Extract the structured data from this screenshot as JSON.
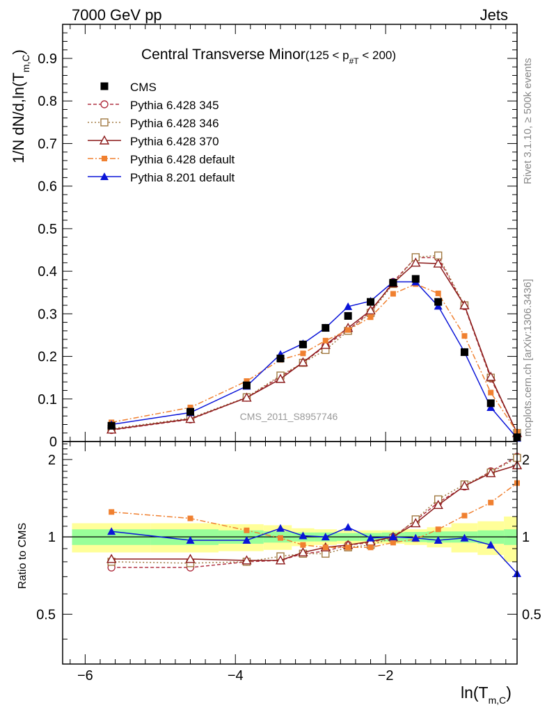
{
  "header": {
    "energy_label": "7000 GeV pp",
    "process_label": "Jets",
    "plot_title": "Central Transverse Minor",
    "plot_title_cut_pre": "(125 < p",
    "plot_title_cut_sub": "#T",
    "plot_title_cut_post": " < 200)",
    "analysis_id": "CMS_2011_S8957746",
    "side_label_top": "Rivet 3.1.10, ≥ 500k events",
    "side_label_bottom": "mcplots.cern.ch [arXiv:1306.3436]"
  },
  "axes": {
    "ylabel_main_pre": "1/N",
    "ylabel_main_mid": " dN/d,ln(T",
    "ylabel_main_sub": "m,C",
    "ylabel_main_post": ")",
    "ylabel_ratio": "Ratio to CMS",
    "xlabel_pre": "ln(T",
    "xlabel_sub": "m,C",
    "xlabel_post": ")"
  },
  "chart_data": {
    "type": "line",
    "x_range": [
      -6.3,
      -0.25
    ],
    "y_range_main": [
      0,
      0.98
    ],
    "y_range_ratio": [
      0.32,
      2.35
    ],
    "ratio_scale": "log",
    "legend_position": "top-left",
    "x_ticks": [
      -6,
      -4,
      -2
    ],
    "x_tick_labels": [
      "−6",
      "−4",
      "−2"
    ],
    "y_ticks_main": [
      0,
      0.1,
      0.2,
      0.3,
      0.4,
      0.5,
      0.6,
      0.7,
      0.8,
      0.9
    ],
    "y_tick_labels_main": [
      "0",
      "0.1",
      "0.2",
      "0.3",
      "0.4",
      "0.5",
      "0.6",
      "0.7",
      "0.8",
      "0.9"
    ],
    "y_ticks_ratio": [
      0.5,
      1,
      2
    ],
    "y_tick_labels_ratio": [
      "0.5",
      "1",
      "2"
    ],
    "x": [
      -5.65,
      -4.6,
      -3.85,
      -3.4,
      -3.1,
      -2.8,
      -2.5,
      -2.2,
      -1.9,
      -1.6,
      -1.3,
      -0.95,
      -0.6,
      -0.25
    ],
    "reference": {
      "name": "CMS",
      "color": "#000000",
      "x": [
        -5.65,
        -4.6,
        -3.85,
        -3.4,
        -3.1,
        -2.8,
        -2.5,
        -2.2,
        -1.9,
        -1.6,
        -1.3,
        -0.95,
        -0.6,
        -0.25
      ],
      "values": [
        0.037,
        0.07,
        0.132,
        0.195,
        0.228,
        0.267,
        0.295,
        0.328,
        0.373,
        0.382,
        0.328,
        0.21,
        0.09,
        0.01
      ]
    },
    "band_inner": [
      0.07,
      0.07,
      0.06,
      0.05,
      0.04,
      0.04,
      0.035,
      0.035,
      0.04,
      0.045,
      0.05,
      0.05,
      0.06,
      0.07
    ],
    "band_outer": [
      0.13,
      0.13,
      0.12,
      0.11,
      0.08,
      0.07,
      0.06,
      0.06,
      0.06,
      0.07,
      0.09,
      0.13,
      0.15,
      0.2
    ],
    "series": [
      {
        "name": "Pythia 6.428 345",
        "color": "#b03040",
        "dash": "5,3",
        "marker": "open-circle",
        "values": [
          0.027,
          0.052,
          0.103,
          0.152,
          0.185,
          0.225,
          0.262,
          0.305,
          0.375,
          0.432,
          0.432,
          0.318,
          0.148,
          0.02
        ],
        "ratio": [
          0.76,
          0.76,
          0.8,
          0.81,
          0.86,
          0.88,
          0.93,
          0.95,
          1.0,
          1.16,
          1.36,
          1.57,
          1.8,
          2.05
        ]
      },
      {
        "name": "Pythia 6.428 346",
        "color": "#a07840",
        "dash": "2,3",
        "marker": "open-square",
        "values": [
          0.03,
          0.055,
          0.104,
          0.155,
          0.185,
          0.215,
          0.26,
          0.302,
          0.37,
          0.433,
          0.437,
          0.32,
          0.15,
          0.02
        ],
        "ratio": [
          0.8,
          0.79,
          0.8,
          0.84,
          0.86,
          0.86,
          0.91,
          0.93,
          0.99,
          1.17,
          1.4,
          1.6,
          1.78,
          2.03
        ]
      },
      {
        "name": "Pythia 6.428 370",
        "color": "#8b1a1a",
        "dash": "",
        "marker": "open-triangle",
        "values": [
          0.028,
          0.053,
          0.103,
          0.147,
          0.186,
          0.227,
          0.267,
          0.308,
          0.372,
          0.42,
          0.418,
          0.32,
          0.152,
          0.02
        ],
        "ratio": [
          0.82,
          0.82,
          0.81,
          0.81,
          0.87,
          0.91,
          0.93,
          0.96,
          1.0,
          1.13,
          1.33,
          1.58,
          1.77,
          1.9
        ]
      },
      {
        "name": "Pythia 6.428 default",
        "color": "#f08030",
        "dash": "8,3,2,3",
        "marker": "filled-square",
        "values": [
          0.045,
          0.08,
          0.142,
          0.192,
          0.207,
          0.237,
          0.262,
          0.292,
          0.347,
          0.37,
          0.348,
          0.248,
          0.115,
          0.022
        ],
        "ratio": [
          1.25,
          1.18,
          1.06,
          0.99,
          0.93,
          0.91,
          0.91,
          0.91,
          0.95,
          0.98,
          1.07,
          1.21,
          1.36,
          1.62
        ]
      },
      {
        "name": "Pythia 8.201 default",
        "color": "#0a14d8",
        "dash": "",
        "marker": "filled-triangle",
        "values": [
          0.04,
          0.068,
          0.13,
          0.205,
          0.23,
          0.267,
          0.317,
          0.33,
          0.375,
          0.375,
          0.318,
          0.21,
          0.08,
          0.008
        ],
        "ratio": [
          1.05,
          0.97,
          0.97,
          1.08,
          1.01,
          1.0,
          1.09,
          0.99,
          1.0,
          0.99,
          0.97,
          0.99,
          0.93,
          0.72
        ]
      }
    ]
  }
}
